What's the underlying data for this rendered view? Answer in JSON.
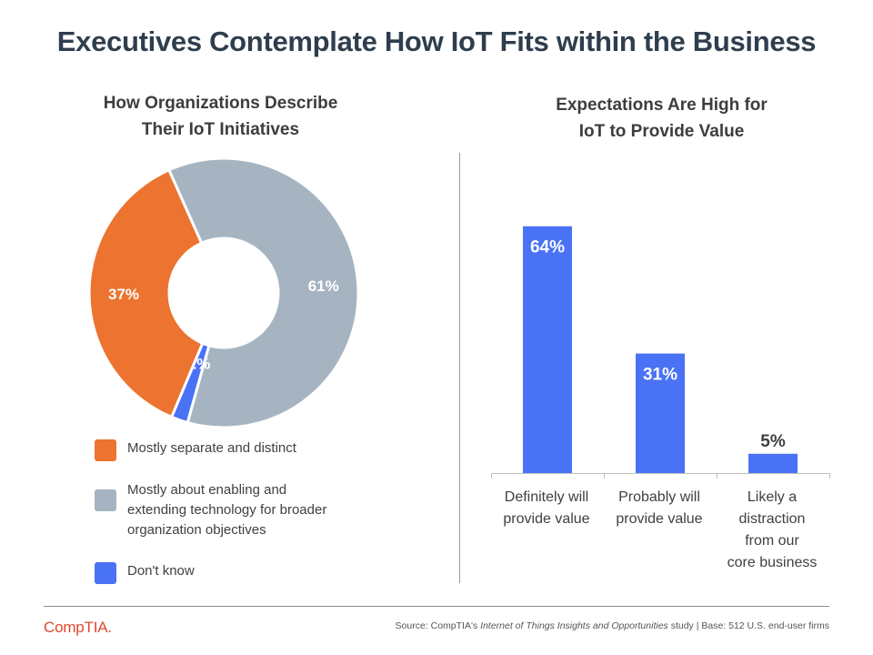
{
  "title": "Executives Contemplate How IoT Fits within the Business",
  "left_title": [
    "How Organizations Describe",
    "Their IoT Initiatives"
  ],
  "right_title": [
    "Expectations Are High for",
    "IoT to Provide Value"
  ],
  "chart_data": [
    {
      "type": "pie",
      "style": "donut",
      "title": "How Organizations Describe Their IoT Initiatives",
      "slices": [
        {
          "label": "Mostly about enabling and extending technology for broader organization objectives",
          "value": 61,
          "display": "61%",
          "color": "#a6b4c2"
        },
        {
          "label": "Don't know",
          "value": 2,
          "display": "2%",
          "color": "#4a72f5"
        },
        {
          "label": "Mostly separate and distinct",
          "value": 37,
          "display": "37%",
          "color": "#ec7330"
        }
      ],
      "legend_position": "bottom"
    },
    {
      "type": "bar",
      "title": "Expectations Are High for IoT to Provide Value",
      "categories": [
        [
          "Definitely will",
          "provide value"
        ],
        [
          "Probably will",
          "provide value"
        ],
        [
          "Likely a",
          "distraction",
          "from our",
          "core business"
        ]
      ],
      "values": [
        64,
        31,
        5
      ],
      "labels": [
        "64%",
        "31%",
        "5%"
      ],
      "color": "#4a72f5",
      "ylim": [
        0,
        70
      ],
      "xlabel": "",
      "ylabel": ""
    }
  ],
  "legend": [
    {
      "lines": [
        "Mostly separate and distinct"
      ],
      "color": "#ec7330"
    },
    {
      "lines": [
        "Mostly about enabling and",
        "extending technology for broader",
        "organization objectives"
      ],
      "color": "#a6b4c2"
    },
    {
      "lines": [
        "Don't know"
      ],
      "color": "#4a72f5"
    }
  ],
  "footer": {
    "logo": "CompTIA.",
    "source_prefix": "Source: CompTIA's ",
    "source_italic": "Internet of Things Insights and Opportunities",
    "source_suffix": " study | Base: 512 U.S. end-user firms"
  }
}
